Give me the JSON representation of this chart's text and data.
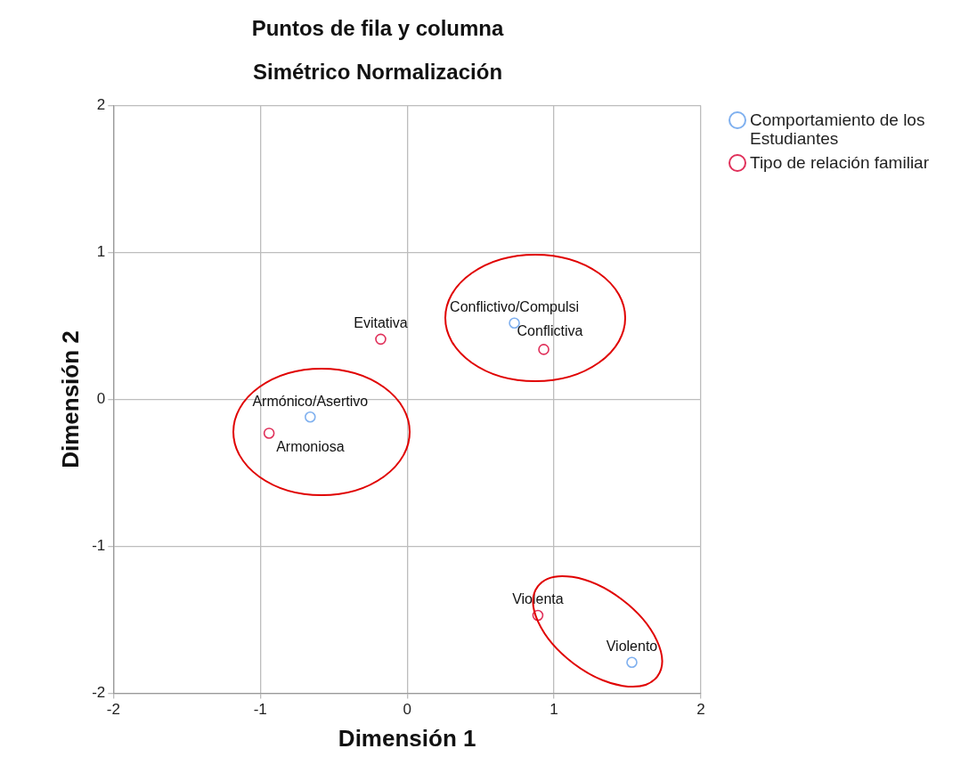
{
  "chart_data": {
    "type": "scatter",
    "title": "Puntos de fila y columna",
    "subtitle": "Simétrico Normalización",
    "xlabel": "Dimensión 1",
    "ylabel": "Dimensión 2",
    "xlim": [
      -2,
      2
    ],
    "xticks": [
      -2,
      -1,
      0,
      1,
      2
    ],
    "ylim": [
      -2,
      2
    ],
    "yticks": [
      -2,
      -1,
      0,
      1,
      2
    ],
    "grid": true,
    "legend": "top right",
    "marker": "circle",
    "series": [
      {
        "name": "Comportamiento de los Estudiantes",
        "color": "#7fb0ef",
        "x": [
          -0.66,
          0.73,
          1.53
        ],
        "values": [
          -0.12,
          0.52,
          -1.79
        ]
      },
      {
        "name": "Tipo de relación familiar",
        "color": "#e0305a",
        "x": [
          -0.94,
          -0.18,
          0.93,
          0.89
        ],
        "values": [
          -0.23,
          0.41,
          0.34,
          -1.47
        ]
      }
    ],
    "annotations": [
      {
        "text": "Armónico/Asertivo",
        "x": -0.66,
        "y": -0.12
      },
      {
        "text": "Conflictivo/Compulsi",
        "x": 0.73,
        "y": 0.52
      },
      {
        "text": "Violento",
        "x": 1.53,
        "y": -1.79
      },
      {
        "text": "Armoniosa",
        "x": -0.94,
        "y": -0.23
      },
      {
        "text": "Evitativa",
        "x": -0.18,
        "y": 0.41
      },
      {
        "text": "Conflictiva",
        "x": 0.93,
        "y": 0.34
      },
      {
        "text": "Violenta",
        "x": 0.89,
        "y": -1.47
      }
    ]
  }
}
